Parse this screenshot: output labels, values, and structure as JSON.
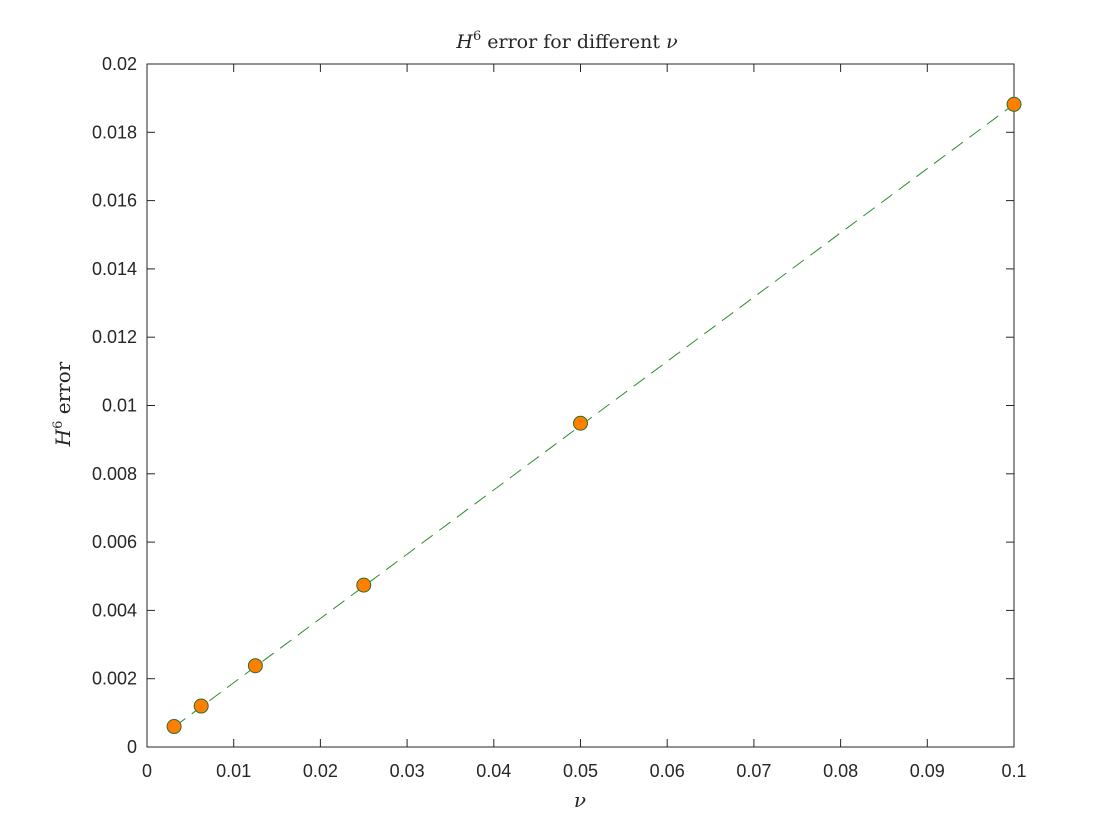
{
  "chart_data": {
    "type": "scatter",
    "title": {
      "symbol": "H",
      "superscript": "6",
      "text": " error for different ",
      "nu": "ν"
    },
    "xlabel": "ν",
    "ylabel": {
      "symbol": "H",
      "superscript": "6",
      "text": " error"
    },
    "xlim": [
      0,
      0.1
    ],
    "ylim": [
      0,
      0.02
    ],
    "x_ticks": [
      0,
      0.01,
      0.02,
      0.03,
      0.04,
      0.05,
      0.06,
      0.07,
      0.08,
      0.09,
      0.1
    ],
    "x_tick_labels": [
      "0",
      "0.01",
      "0.02",
      "0.03",
      "0.04",
      "0.05",
      "0.06",
      "0.07",
      "0.08",
      "0.09",
      "0.1"
    ],
    "y_ticks": [
      0,
      0.002,
      0.004,
      0.006,
      0.008,
      0.01,
      0.012,
      0.014,
      0.016,
      0.018,
      0.02
    ],
    "y_tick_labels": [
      "0",
      "0.002",
      "0.004",
      "0.006",
      "0.008",
      "0.01",
      "0.012",
      "0.014",
      "0.016",
      "0.018",
      "0.02"
    ],
    "grid": false,
    "box": true,
    "legend": "none",
    "series": [
      {
        "type": "scatter",
        "x": [
          0.003125,
          0.00625,
          0.0125,
          0.025,
          0.05,
          0.1
        ],
        "y": [
          0.0006,
          0.0012,
          0.00238,
          0.00474,
          0.00948,
          0.01882
        ],
        "marker": "circle",
        "fill_color": "#ff8000",
        "edge_color": "#2e6b2e"
      },
      {
        "type": "line",
        "style": "dashed",
        "x": [
          0.003125,
          0.1
        ],
        "y": [
          0.000588,
          0.01882
        ],
        "color": "#2e8b2e"
      }
    ]
  }
}
